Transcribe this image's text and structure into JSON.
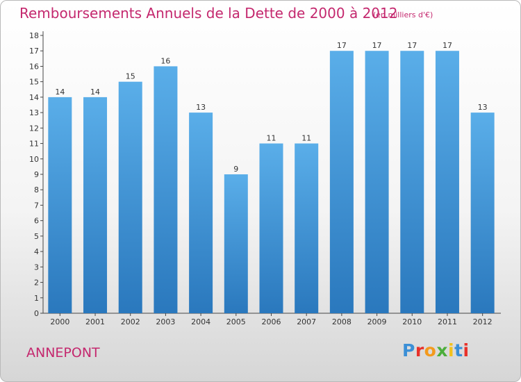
{
  "header": {
    "title": "Remboursements Annuels de la Dette de 2000 à 2012",
    "subtitle": "(en milliers d'€)"
  },
  "footer": {
    "commune": "ANNEPONT",
    "logo": "Proxiti"
  },
  "colors": {
    "bar_top": "#5aaee9",
    "bar_bottom": "#2a78bd",
    "title": "#c4286e"
  },
  "chart_data": {
    "type": "bar",
    "title": "Remboursements Annuels de la Dette de 2000 à 2012",
    "subtitle": "(en milliers d'€)",
    "categories": [
      "2000",
      "2001",
      "2002",
      "2003",
      "2004",
      "2005",
      "2006",
      "2007",
      "2008",
      "2009",
      "2010",
      "2011",
      "2012"
    ],
    "values": [
      14,
      14,
      15,
      16,
      13,
      9,
      11,
      11,
      17,
      17,
      17,
      17,
      13
    ],
    "ylim": [
      0,
      18
    ],
    "yticks": [
      0,
      1,
      2,
      3,
      4,
      5,
      6,
      7,
      8,
      9,
      10,
      11,
      12,
      13,
      14,
      15,
      16,
      17,
      18
    ],
    "grid": false,
    "data_labels": true
  }
}
